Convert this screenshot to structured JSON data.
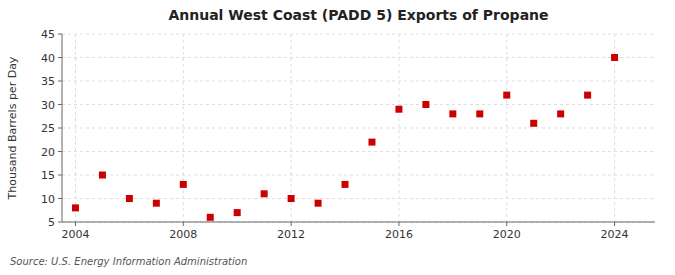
{
  "chart_data": {
    "type": "scatter",
    "title": "Annual West Coast (PADD 5) Exports of Propane",
    "ylabel": "Thousand Barrels per Day",
    "annotations": [
      "Source: U.S. Energy Information Administration"
    ],
    "x": [
      2004,
      2005,
      2006,
      2007,
      2008,
      2009,
      2010,
      2011,
      2012,
      2013,
      2014,
      2015,
      2016,
      2017,
      2018,
      2019,
      2020,
      2021,
      2022,
      2023,
      2024
    ],
    "values": [
      8,
      15,
      10,
      9,
      13,
      6,
      7,
      11,
      10,
      9,
      13,
      22,
      29,
      30,
      28,
      28,
      32,
      26,
      28,
      32,
      40
    ],
    "color": "#cc0000",
    "marker": "square",
    "xlim": [
      2003.5,
      2025.5
    ],
    "xticks": [
      2004,
      2008,
      2012,
      2016,
      2020,
      2024
    ],
    "ylim": [
      5,
      45
    ],
    "yticks": [
      5,
      10,
      15,
      20,
      25,
      30,
      35,
      40,
      45
    ],
    "grid": true
  }
}
